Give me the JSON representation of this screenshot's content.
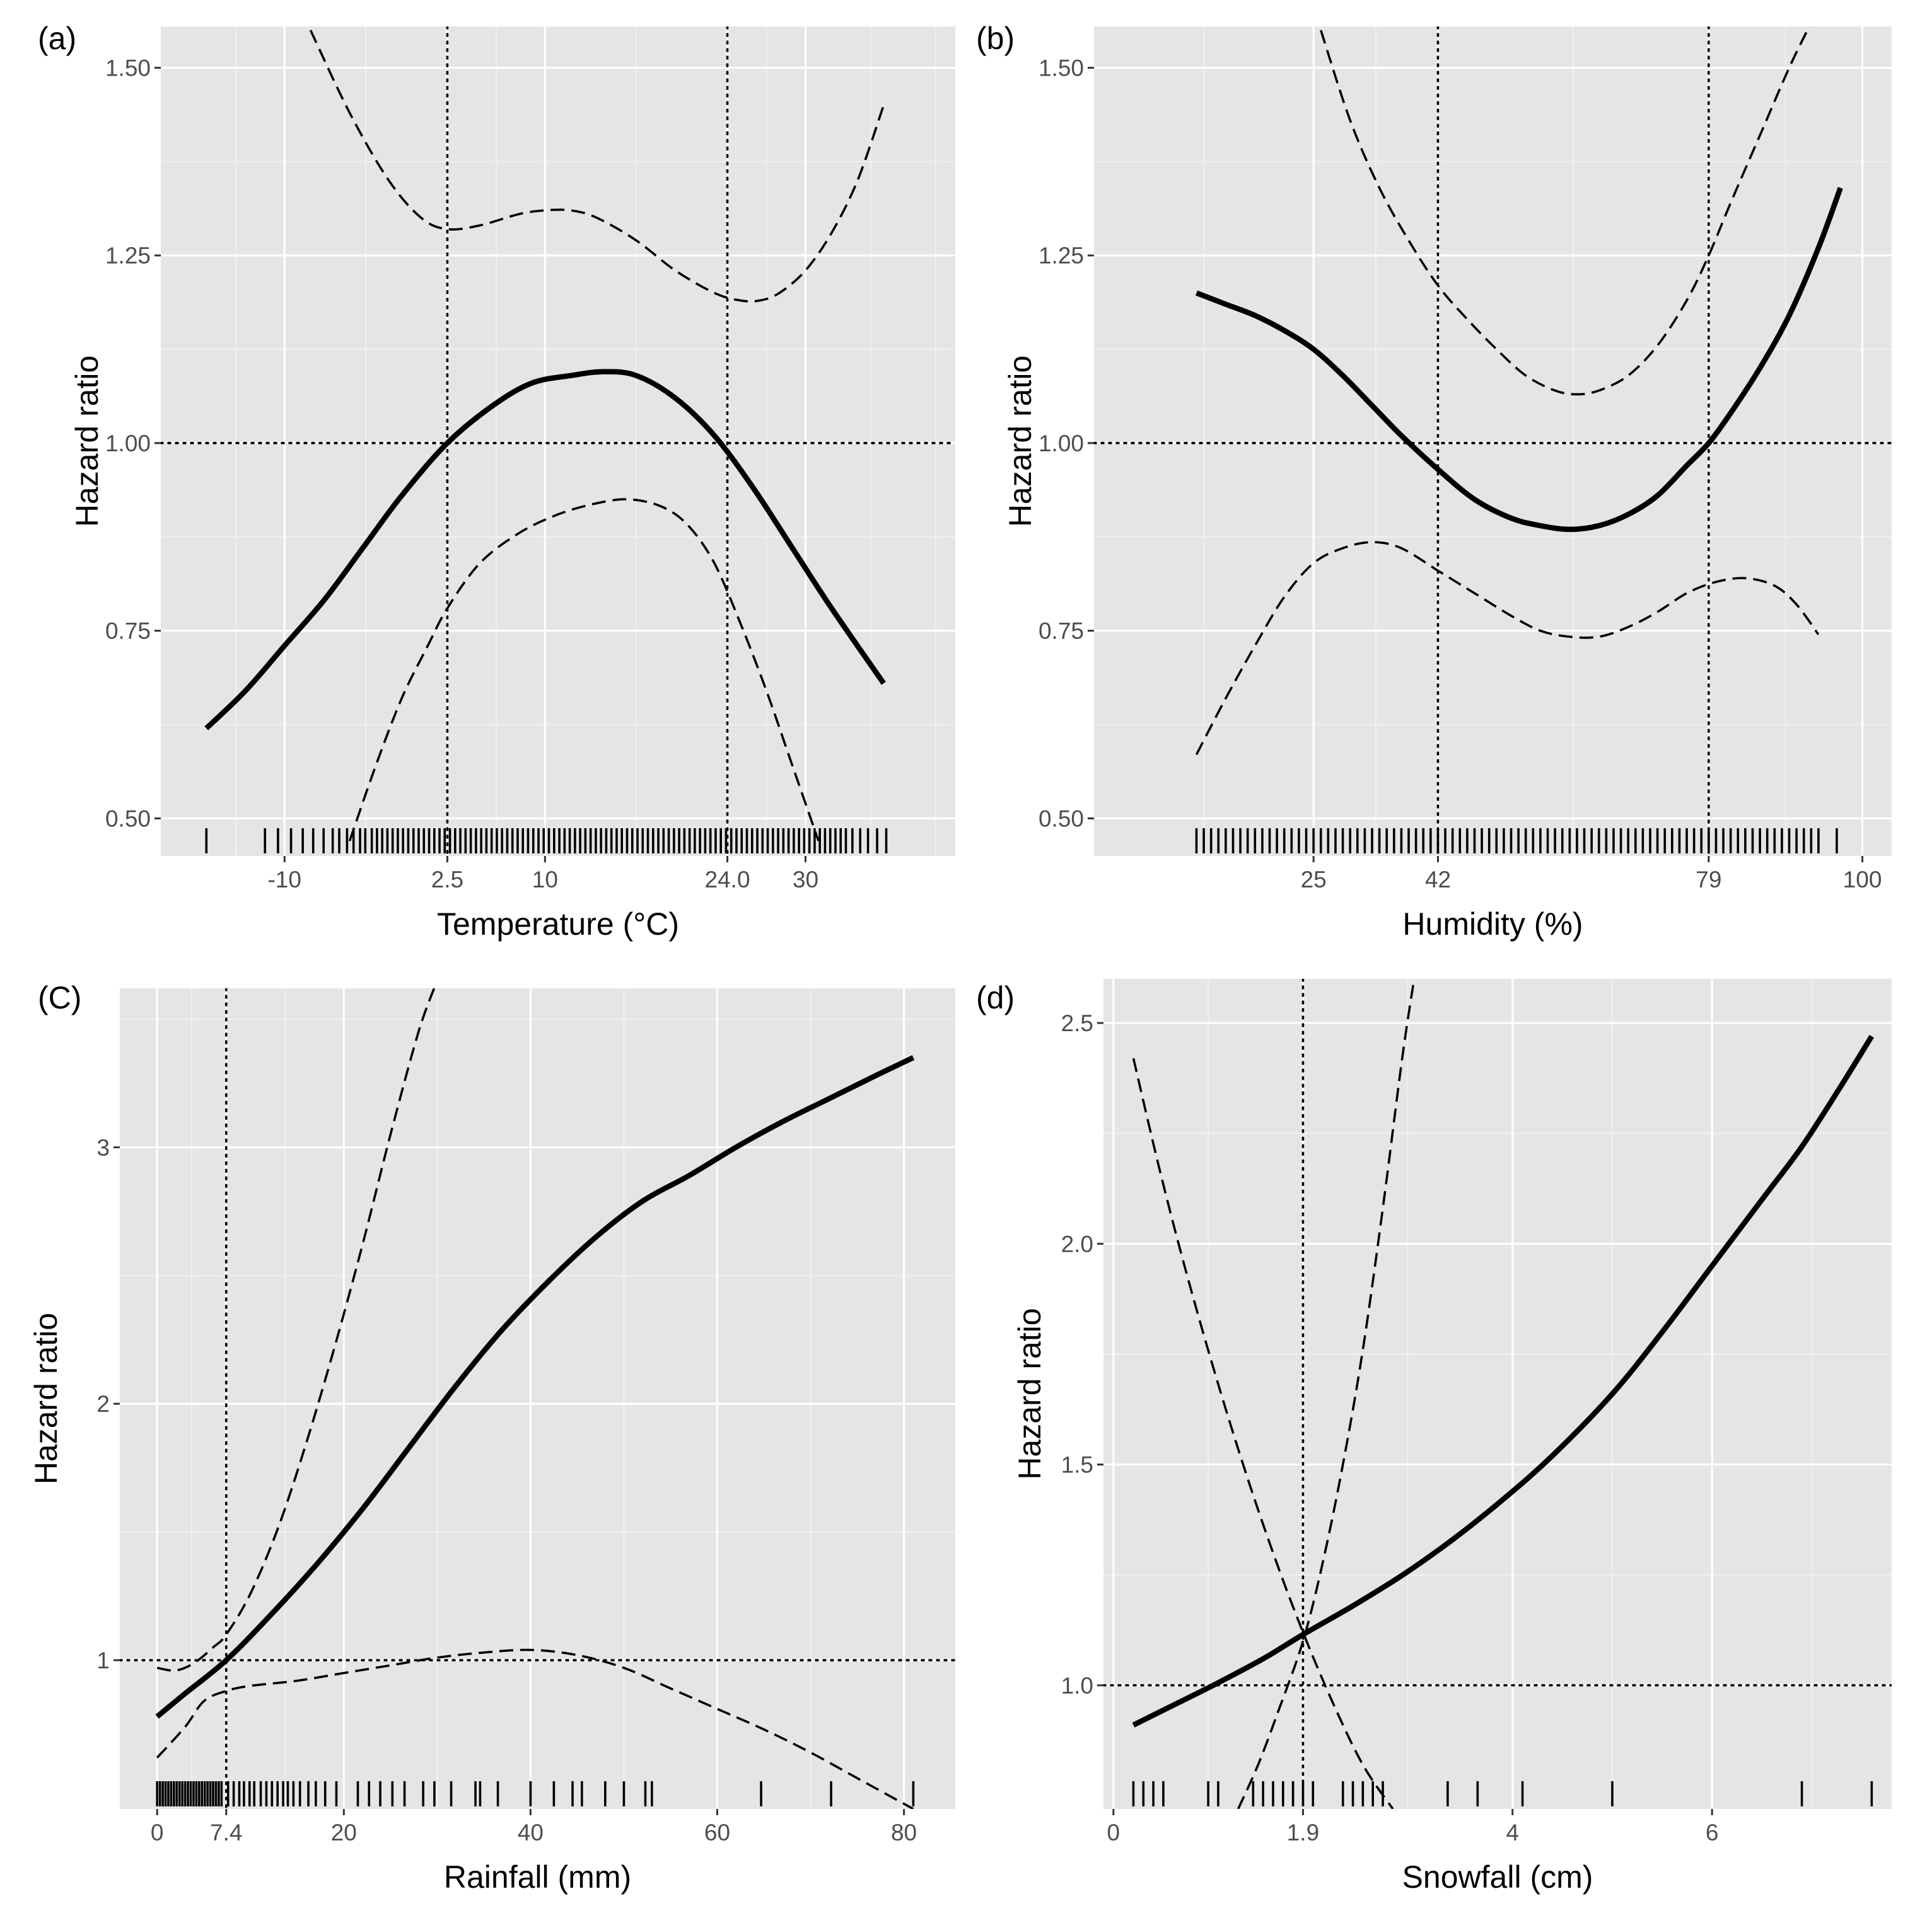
{
  "chart_data": [
    {
      "id": "a",
      "type": "line",
      "panel_label": "(a)",
      "xlabel": "Temperature (°C)",
      "ylabel": "Hazard ratio",
      "xlim": [
        -19.5,
        41.5
      ],
      "ylim": [
        0.45,
        1.555
      ],
      "x_grid_major": [
        -10,
        2.5,
        10,
        24.0,
        30
      ],
      "x_grid_minor": [
        -13.75,
        -3.75,
        6.25,
        17.0,
        27.0,
        35.0,
        40.0
      ],
      "xticks": [
        -10,
        2.5,
        10,
        24.0,
        30
      ],
      "xtick_labels": [
        "-10",
        "2.5",
        "10",
        "24.0",
        "30"
      ],
      "yticks": [
        0.5,
        0.75,
        1.0,
        1.25,
        1.5
      ],
      "ytick_labels": [
        "0.50",
        "0.75",
        "1.00",
        "1.25",
        "1.50"
      ],
      "vlines": [
        2.5,
        24.0
      ],
      "hline": 1.0,
      "series": [
        {
          "name": "hazard_ratio",
          "style": "solid",
          "x": [
            -16,
            -13,
            -10,
            -7,
            -4,
            -1,
            2.5,
            6,
            9,
            12,
            14.5,
            17,
            20,
            23,
            26,
            29,
            32,
            36
          ],
          "y": [
            0.62,
            0.67,
            0.73,
            0.79,
            0.86,
            0.93,
            1.0,
            1.05,
            1.08,
            1.09,
            1.095,
            1.09,
            1.06,
            1.01,
            0.94,
            0.86,
            0.78,
            0.68
          ]
        },
        {
          "name": "upper_ci",
          "style": "dashed",
          "x": [
            -8,
            -5,
            -2,
            0.5,
            2.5,
            5,
            8,
            10,
            12,
            14,
            17,
            20,
            23,
            25,
            26.5,
            28,
            30,
            32,
            34,
            36
          ],
          "y": [
            1.55,
            1.44,
            1.35,
            1.3,
            1.285,
            1.29,
            1.305,
            1.31,
            1.31,
            1.3,
            1.27,
            1.23,
            1.2,
            1.19,
            1.19,
            1.2,
            1.23,
            1.28,
            1.35,
            1.45
          ]
        },
        {
          "name": "lower_ci",
          "style": "dashed",
          "x": [
            -5,
            -3,
            -1,
            1,
            2.5,
            5,
            8,
            11,
            14,
            16.5,
            19,
            21,
            23,
            25,
            27,
            29,
            31
          ],
          "y": [
            0.47,
            0.57,
            0.66,
            0.73,
            0.78,
            0.84,
            0.88,
            0.905,
            0.92,
            0.925,
            0.915,
            0.89,
            0.84,
            0.76,
            0.67,
            0.57,
            0.47
          ]
        }
      ],
      "rug": [
        -16,
        -11.5,
        -10.5,
        -9.5,
        -8.6,
        -7.8,
        -7.0,
        -6.3,
        -5.8,
        -5.2,
        -4.7,
        -4.2,
        -3.8,
        -3.3,
        -2.9,
        -2.5,
        -2.1,
        -1.7,
        -1.3,
        -0.9,
        -0.5,
        -0.1,
        0.3,
        0.7,
        1.1,
        1.5,
        1.9,
        2.3,
        2.7,
        3.1,
        3.5,
        3.9,
        4.3,
        4.7,
        5.1,
        5.5,
        5.9,
        6.3,
        6.7,
        7.1,
        7.5,
        7.9,
        8.3,
        8.7,
        9.1,
        9.5,
        9.9,
        10.3,
        10.7,
        11.1,
        11.5,
        11.9,
        12.3,
        12.7,
        13.1,
        13.5,
        13.9,
        14.3,
        14.7,
        15.1,
        15.5,
        15.9,
        16.3,
        16.7,
        17.1,
        17.5,
        17.9,
        18.3,
        18.7,
        19.1,
        19.5,
        19.9,
        20.3,
        20.7,
        21.1,
        21.5,
        21.9,
        22.3,
        22.7,
        23.1,
        23.5,
        23.9,
        24.3,
        24.7,
        25.1,
        25.5,
        25.9,
        26.3,
        26.7,
        27.1,
        27.5,
        27.9,
        28.3,
        28.7,
        29.1,
        29.5,
        29.9,
        30.3,
        30.7,
        31.1,
        31.5,
        31.9,
        32.3,
        32.7,
        33.1,
        33.6,
        34.2,
        34.8,
        35.5,
        36.2
      ]
    },
    {
      "id": "b",
      "type": "line",
      "panel_label": "(b)",
      "xlabel": "Humidity (%)",
      "ylabel": "Hazard ratio",
      "xlim": [
        -5,
        104
      ],
      "ylim": [
        0.45,
        1.555
      ],
      "x_grid_major": [
        25,
        42,
        79,
        100
      ],
      "x_grid_minor": [
        10,
        33.5,
        60.5,
        89.5
      ],
      "xticks": [
        25,
        42,
        79,
        100
      ],
      "xtick_labels": [
        "25",
        "42",
        "79",
        "100"
      ],
      "yticks": [
        0.5,
        0.75,
        1.0,
        1.25,
        1.5
      ],
      "ytick_labels": [
        "0.50",
        "0.75",
        "1.00",
        "1.25",
        "1.50"
      ],
      "vlines": [
        42,
        79
      ],
      "hline": 1.0,
      "series": [
        {
          "name": "hazard_ratio",
          "style": "solid",
          "x": [
            9,
            13,
            17,
            21,
            25,
            29,
            33,
            37,
            42,
            47,
            52,
            56,
            60,
            64,
            68,
            72,
            76,
            79,
            82,
            86,
            90,
            94,
            97
          ],
          "y": [
            1.2,
            1.185,
            1.17,
            1.15,
            1.125,
            1.09,
            1.05,
            1.01,
            0.965,
            0.925,
            0.9,
            0.89,
            0.885,
            0.89,
            0.905,
            0.93,
            0.97,
            1.0,
            1.04,
            1.1,
            1.17,
            1.26,
            1.34
          ]
        },
        {
          "name": "upper_ci",
          "style": "dashed",
          "x": [
            26,
            30,
            34,
            38,
            42,
            46,
            50,
            54,
            58,
            61,
            64,
            68,
            72,
            76,
            79,
            82,
            86,
            90,
            93
          ],
          "y": [
            1.55,
            1.43,
            1.34,
            1.27,
            1.21,
            1.165,
            1.125,
            1.09,
            1.07,
            1.065,
            1.07,
            1.09,
            1.13,
            1.19,
            1.25,
            1.32,
            1.41,
            1.5,
            1.56
          ]
        },
        {
          "name": "lower_ci",
          "style": "dashed",
          "x": [
            9,
            13,
            17,
            21,
            25,
            29,
            33,
            37,
            42,
            47,
            52,
            56,
            60,
            64,
            68,
            72,
            76,
            80,
            84,
            88,
            91,
            94
          ],
          "y": [
            0.585,
            0.66,
            0.73,
            0.795,
            0.84,
            0.86,
            0.868,
            0.86,
            0.83,
            0.8,
            0.77,
            0.75,
            0.742,
            0.742,
            0.755,
            0.775,
            0.8,
            0.815,
            0.82,
            0.81,
            0.785,
            0.745
          ]
        }
      ],
      "rug": [
        9.0,
        10.0,
        11.0,
        12.0,
        13.0,
        14.0,
        15.0,
        16.0,
        17.0,
        18.0,
        19.0,
        20.0,
        21.0,
        22.0,
        23.0,
        24.0,
        25.0,
        26.0,
        27.0,
        28.0,
        29.0,
        30.0,
        31.0,
        32.0,
        33.0,
        34.0,
        35.0,
        36.0,
        37.0,
        38.0,
        39.0,
        40.0,
        41.0,
        42.0,
        43.0,
        44.0,
        45.0,
        46.0,
        47.0,
        48.0,
        49.0,
        50.0,
        51.0,
        52.0,
        53.0,
        54.0,
        55.0,
        56.0,
        57.0,
        58.0,
        59.0,
        60.0,
        61.0,
        62.0,
        63.0,
        64.0,
        65.0,
        66.0,
        67.0,
        68.0,
        69.0,
        70.0,
        71.0,
        72.0,
        73.0,
        74.0,
        75.0,
        76.0,
        77.0,
        78.0,
        79.0,
        80.0,
        81.0,
        82.0,
        83.0,
        84.0,
        85.0,
        86.0,
        87.0,
        88.0,
        89.0,
        90.0,
        91.0,
        92.0,
        93.0,
        94.0,
        96.5
      ]
    },
    {
      "id": "c",
      "type": "line",
      "panel_label": "(C)",
      "xlabel": "Rainfall (mm)",
      "ylabel": "Hazard ratio",
      "xlim": [
        -4,
        85.5
      ],
      "ylim": [
        0.42,
        3.62
      ],
      "x_grid_major": [
        0,
        7.4,
        20,
        40,
        60,
        80
      ],
      "x_grid_minor": [
        3.7,
        13.7,
        30,
        50,
        70
      ],
      "xticks": [
        0,
        7.4,
        20,
        40,
        60,
        80
      ],
      "xtick_labels": [
        "0",
        "7.4",
        "20",
        "40",
        "60",
        "80"
      ],
      "yticks": [
        1,
        2,
        3
      ],
      "ytick_labels": [
        "1",
        "2",
        "3"
      ],
      "y_grid_minor": [
        1.5,
        2.5,
        3.5
      ],
      "vlines": [
        7.4
      ],
      "hline": 1.0,
      "series": [
        {
          "name": "hazard_ratio",
          "style": "solid",
          "x": [
            0,
            3,
            7.4,
            12,
            17,
            22,
            27,
            32,
            37,
            42,
            47,
            52,
            57,
            62,
            67,
            72,
            77,
            81
          ],
          "y": [
            0.78,
            0.87,
            1.0,
            1.17,
            1.37,
            1.59,
            1.83,
            2.07,
            2.29,
            2.48,
            2.65,
            2.79,
            2.89,
            3.0,
            3.1,
            3.19,
            3.28,
            3.35
          ]
        },
        {
          "name": "upper_ci",
          "style": "dashed",
          "x": [
            0,
            2,
            4,
            6,
            7.4,
            10,
            13,
            16,
            19,
            22,
            25,
            28,
            30
          ],
          "y": [
            0.97,
            0.96,
            0.99,
            1.05,
            1.1,
            1.26,
            1.52,
            1.85,
            2.22,
            2.62,
            3.05,
            3.45,
            3.65
          ]
        },
        {
          "name": "lower_ci",
          "style": "dashed",
          "x": [
            0,
            3,
            5,
            7.4,
            10,
            15,
            20,
            25,
            30,
            35,
            40,
            45,
            50,
            55,
            60,
            65,
            70,
            75,
            81
          ],
          "y": [
            0.62,
            0.74,
            0.84,
            0.88,
            0.9,
            0.92,
            0.95,
            0.98,
            1.01,
            1.03,
            1.04,
            1.02,
            0.97,
            0.89,
            0.81,
            0.73,
            0.64,
            0.54,
            0.42
          ]
        }
      ],
      "rug": [
        0.0,
        0.3,
        0.6,
        0.9,
        1.2,
        1.5,
        1.8,
        2.1,
        2.4,
        2.7,
        3.0,
        3.3,
        3.6,
        3.9,
        4.2,
        4.5,
        4.8,
        5.1,
        5.4,
        5.7,
        6.0,
        6.3,
        6.6,
        6.9,
        7.6,
        8.2,
        8.8,
        9.3,
        9.9,
        10.4,
        11.1,
        11.7,
        12.3,
        12.9,
        13.5,
        14.0,
        14.6,
        15.3,
        16.2,
        17.0,
        18.0,
        19.2,
        21.5,
        22.7,
        23.9,
        25.2,
        26.5,
        28.5,
        29.7,
        31.5,
        34.1,
        34.6,
        36.5,
        40.0,
        42.5,
        44.5,
        45.5,
        48.0,
        50.0,
        52.3,
        53.0,
        64.7,
        72.2,
        81.0
      ]
    },
    {
      "id": "d",
      "type": "line",
      "panel_label": "(d)",
      "xlabel": "Snowfall (cm)",
      "ylabel": "Hazard ratio",
      "xlim": [
        -0.1,
        7.8
      ],
      "ylim": [
        0.72,
        2.6
      ],
      "x_grid_major": [
        0,
        1.9,
        4,
        6
      ],
      "x_grid_minor": [
        0.95,
        2.95,
        5,
        7
      ],
      "xticks": [
        0,
        1.9,
        4,
        6
      ],
      "xtick_labels": [
        "0",
        "1.9",
        "4",
        "6"
      ],
      "yticks": [
        1.0,
        1.5,
        2.0,
        2.5
      ],
      "ytick_labels": [
        "1.0",
        "1.5",
        "2.0",
        "2.5"
      ],
      "y_grid_minor": [
        1.25,
        1.75,
        2.25
      ],
      "vlines": [
        1.9
      ],
      "hline": 1.0,
      "series": [
        {
          "name": "hazard_ratio",
          "style": "solid",
          "x": [
            0.2,
            0.6,
            1.0,
            1.5,
            1.9,
            2.4,
            2.9,
            3.4,
            3.9,
            4.4,
            5.0,
            5.5,
            6.0,
            6.5,
            6.9,
            7.3,
            7.6
          ],
          "y": [
            0.91,
            0.955,
            1.0,
            1.06,
            1.115,
            1.18,
            1.25,
            1.33,
            1.42,
            1.52,
            1.66,
            1.8,
            1.95,
            2.1,
            2.22,
            2.36,
            2.47
          ]
        },
        {
          "name": "lower_rising_ci",
          "style": "dashed",
          "x": [
            1.25,
            1.45,
            1.65,
            1.9,
            2.1,
            2.3,
            2.5,
            2.7,
            2.9,
            3.05
          ],
          "y": [
            0.72,
            0.82,
            0.94,
            1.1,
            1.28,
            1.5,
            1.76,
            2.08,
            2.43,
            2.65
          ]
        },
        {
          "name": "falling_ci",
          "style": "dashed",
          "x": [
            0.2,
            0.45,
            0.7,
            1.0,
            1.3,
            1.6,
            1.9,
            2.2,
            2.5,
            2.8
          ],
          "y": [
            2.42,
            2.18,
            1.96,
            1.72,
            1.5,
            1.3,
            1.12,
            0.96,
            0.82,
            0.72
          ]
        }
      ],
      "rug": [
        0.2,
        0.3,
        0.4,
        0.5,
        0.95,
        1.05,
        1.4,
        1.5,
        1.6,
        1.7,
        1.8,
        1.9,
        2.0,
        2.3,
        2.4,
        2.5,
        2.6,
        2.7,
        3.35,
        3.65,
        4.1,
        5.0,
        6.9,
        7.6
      ]
    }
  ]
}
